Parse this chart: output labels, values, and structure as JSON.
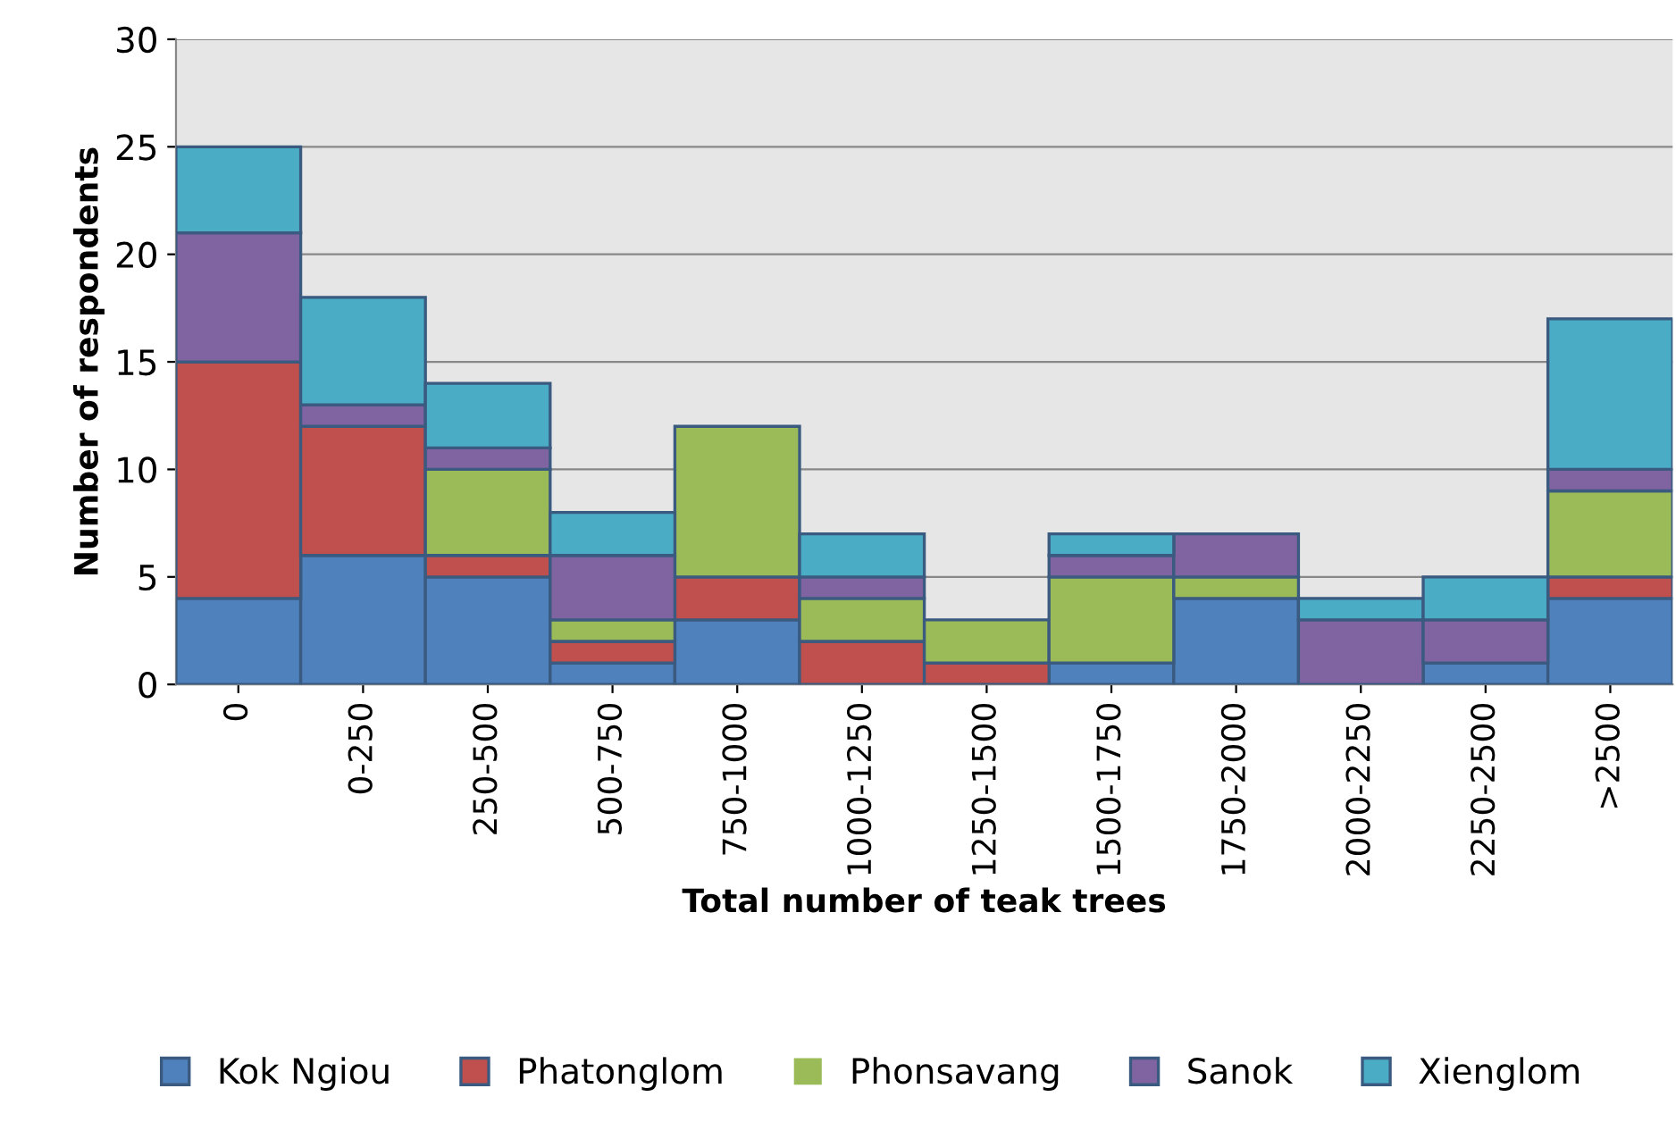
{
  "chart_data": {
    "type": "bar",
    "stacked": true,
    "xlabel": "Total number of teak trees",
    "ylabel": "Number of respondents",
    "categories": [
      "0",
      "0-250",
      "250-500",
      "500-750",
      "750-1000",
      "1000-1250",
      "1250-1500",
      "1500-1750",
      "1750-2000",
      "2000-2250",
      "2250-2500",
      ">2500"
    ],
    "series": [
      {
        "name": "Kok Ngiou",
        "color": "#4f81bd",
        "values": [
          4,
          6,
          5,
          1,
          3,
          0,
          0,
          1,
          4,
          0,
          1,
          4
        ]
      },
      {
        "name": "Phatonglom",
        "color": "#c0504d",
        "values": [
          11,
          6,
          1,
          1,
          2,
          2,
          1,
          0,
          0,
          0,
          0,
          1
        ]
      },
      {
        "name": "Phonsavang",
        "color": "#9bbb59",
        "values": [
          0,
          0,
          4,
          1,
          7,
          2,
          2,
          4,
          1,
          0,
          0,
          4
        ]
      },
      {
        "name": "Sanok",
        "color": "#8064a2",
        "values": [
          6,
          1,
          1,
          3,
          0,
          1,
          0,
          1,
          2,
          3,
          2,
          1
        ]
      },
      {
        "name": "Xienglom",
        "color": "#4bacc6",
        "values": [
          4,
          5,
          3,
          2,
          0,
          2,
          0,
          1,
          0,
          1,
          2,
          7
        ]
      }
    ],
    "ylim": [
      0,
      30
    ],
    "yticks": [
      0,
      5,
      10,
      15,
      20,
      25,
      30
    ],
    "grid": "y",
    "legend": "bottom"
  }
}
